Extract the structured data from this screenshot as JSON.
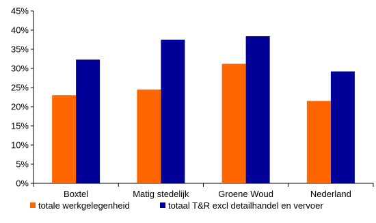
{
  "chart_data": {
    "type": "bar",
    "title": "",
    "xlabel": "",
    "ylabel": "",
    "categories": [
      "Boxtel",
      "Matig stedelijk",
      "Groene Woud",
      "Nederland"
    ],
    "ylim": [
      0,
      45
    ],
    "ytick_values": [
      0,
      5,
      10,
      15,
      20,
      25,
      30,
      35,
      40,
      45
    ],
    "ytick_labels": [
      "0%",
      "5%",
      "10%",
      "15%",
      "20%",
      "25%",
      "30%",
      "35%",
      "40%",
      "45%"
    ],
    "grid": false,
    "legend_position": "bottom",
    "series": [
      {
        "name": "totale werkgelegenheid",
        "color": "#FF6600",
        "values": [
          23,
          24.5,
          31.2,
          21.5
        ]
      },
      {
        "name": "totaal T&R excl detailhandel en vervoer",
        "color": "#000099",
        "values": [
          32.3,
          37.5,
          38.4,
          29.2
        ]
      }
    ]
  }
}
